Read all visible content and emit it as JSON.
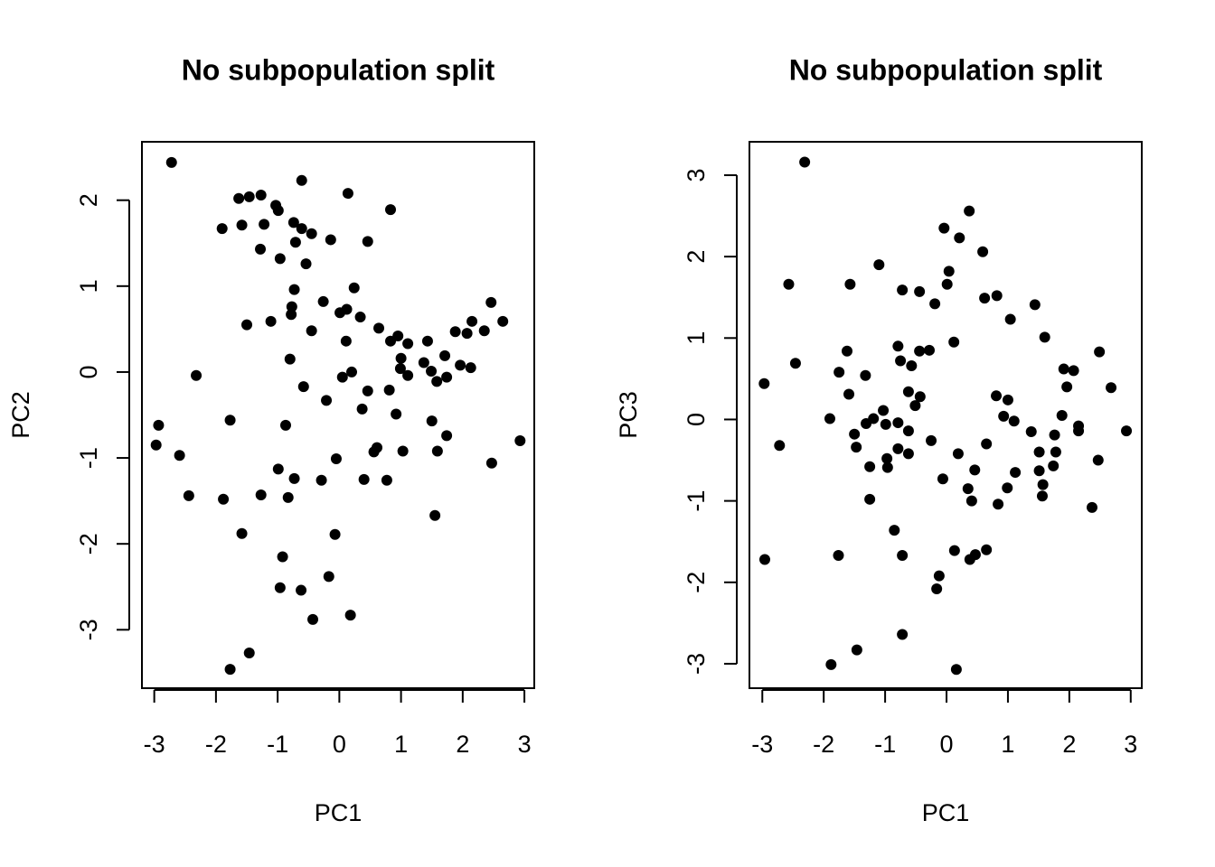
{
  "chart_data": [
    {
      "type": "scatter",
      "title": "No subpopulation split",
      "x_label": "PC1",
      "y_label": "PC2",
      "color": "#000000",
      "xlim": [
        -3.2,
        3.16
      ],
      "ylim": [
        -3.68,
        2.68
      ],
      "xticks": [
        -3,
        -2,
        -1,
        0,
        1,
        2,
        3
      ],
      "yticks": [
        -3,
        -2,
        -1,
        0,
        1,
        2
      ],
      "x": [
        -2.72,
        -1.03,
        -1.63,
        -1.46,
        -1.27,
        -0.61,
        0.14,
        0.83,
        -1.9,
        -1.58,
        -1.22,
        -0.99,
        -0.74,
        -0.61,
        -0.45,
        -0.14,
        0.46,
        -1.28,
        -0.71,
        -0.96,
        -0.54,
        -0.73,
        -1.5,
        -1.11,
        -0.77,
        -0.78,
        -0.26,
        0.12,
        0.01,
        0.34,
        0.24,
        -0.45,
        0.64,
        0.83,
        0.11,
        0.95,
        1.11,
        1.43,
        2.46,
        2.65,
        2.15,
        2.35,
        2.07,
        1.88,
        1.0,
        0.99,
        1.37,
        1.49,
        1.58,
        1.74,
        1.71,
        1.96,
        2.13,
        1.11,
        0.2,
        0.05,
        -0.8,
        -0.58,
        -2.32,
        -0.21,
        0.46,
        0.81,
        0.92,
        0.37,
        -1.77,
        -0.87,
        -2.93,
        -2.97,
        -2.59,
        -0.05,
        -0.99,
        -0.73,
        -0.29,
        -1.27,
        -0.83,
        0.4,
        0.77,
        0.61,
        0.56,
        1.03,
        1.5,
        1.59,
        1.74,
        2.47,
        2.93,
        -2.44,
        -1.88,
        1.55,
        -1.58,
        -0.07,
        -0.92,
        -0.17,
        -0.96,
        -0.62,
        -0.43,
        0.18,
        -1.46,
        -1.77
      ],
      "values": [
        2.44,
        1.94,
        2.02,
        2.04,
        2.06,
        2.23,
        2.08,
        1.89,
        1.67,
        1.71,
        1.72,
        1.88,
        1.74,
        1.67,
        1.61,
        1.54,
        1.52,
        1.43,
        1.51,
        1.32,
        1.26,
        0.96,
        0.55,
        0.59,
        0.76,
        0.67,
        0.82,
        0.73,
        0.69,
        0.64,
        0.98,
        0.48,
        0.51,
        0.36,
        0.36,
        0.42,
        0.33,
        0.36,
        0.81,
        0.59,
        0.59,
        0.48,
        0.45,
        0.47,
        0.16,
        0.04,
        0.11,
        0.01,
        -0.11,
        -0.06,
        0.19,
        0.08,
        0.05,
        -0.04,
        0.0,
        -0.06,
        0.15,
        -0.17,
        -0.04,
        -0.33,
        -0.22,
        -0.21,
        -0.49,
        -0.43,
        -0.56,
        -0.62,
        -0.62,
        -0.85,
        -0.97,
        -1.01,
        -1.13,
        -1.24,
        -1.26,
        -1.43,
        -1.46,
        -1.25,
        -1.26,
        -0.88,
        -0.93,
        -0.92,
        -0.57,
        -0.92,
        -0.74,
        -1.06,
        -0.8,
        -1.44,
        -1.48,
        -1.67,
        -1.88,
        -1.89,
        -2.15,
        -2.38,
        -2.51,
        -2.54,
        -2.88,
        -2.83,
        -3.27,
        -3.46
      ]
    },
    {
      "type": "scatter",
      "title": "No subpopulation split",
      "x_label": "PC1",
      "y_label": "PC3",
      "color": "#000000",
      "xlim": [
        -3.21,
        3.18
      ],
      "ylim": [
        -3.3,
        3.41
      ],
      "xticks": [
        -3,
        -2,
        -1,
        0,
        1,
        2,
        3
      ],
      "yticks": [
        -3,
        -2,
        -1,
        0,
        1,
        2,
        3
      ],
      "x": [
        -2.31,
        0.37,
        -0.04,
        0.21,
        0.59,
        -1.1,
        0.04,
        -2.57,
        -1.57,
        0.01,
        -0.72,
        -0.44,
        0.62,
        0.82,
        -0.19,
        1.44,
        1.04,
        1.6,
        0.12,
        -0.79,
        -1.62,
        -0.44,
        -0.28,
        2.49,
        -2.46,
        -0.75,
        -0.57,
        -1.75,
        -1.32,
        1.91,
        2.07,
        1.96,
        2.68,
        -0.62,
        -0.43,
        -1.59,
        -0.51,
        0.81,
        1.0,
        -2.97,
        -1.03,
        0.93,
        1.1,
        -1.9,
        -1.19,
        -1.31,
        -0.99,
        -0.79,
        1.88,
        2.15,
        2.15,
        2.93,
        1.38,
        1.76,
        -1.5,
        -0.62,
        -2.72,
        -0.25,
        0.65,
        -1.47,
        -0.79,
        -0.62,
        0.19,
        1.51,
        1.78,
        -0.97,
        2.47,
        -1.25,
        -0.96,
        1.74,
        0.46,
        1.51,
        1.12,
        -0.06,
        0.35,
        0.99,
        1.57,
        1.56,
        -1.25,
        0.41,
        0.84,
        2.37,
        -0.85,
        -2.96,
        -1.76,
        -0.72,
        0.13,
        0.47,
        0.65,
        0.38,
        -0.12,
        -0.16,
        -0.72,
        -1.46,
        -1.88,
        0.16
      ],
      "values": [
        3.16,
        2.56,
        2.35,
        2.23,
        2.06,
        1.9,
        1.82,
        1.66,
        1.66,
        1.66,
        1.59,
        1.57,
        1.49,
        1.52,
        1.42,
        1.41,
        1.23,
        1.01,
        0.95,
        0.9,
        0.84,
        0.84,
        0.85,
        0.83,
        0.69,
        0.72,
        0.66,
        0.58,
        0.54,
        0.62,
        0.6,
        0.4,
        0.39,
        0.34,
        0.28,
        0.31,
        0.17,
        0.29,
        0.24,
        0.44,
        0.11,
        0.04,
        -0.02,
        0.01,
        0.01,
        -0.05,
        -0.06,
        -0.04,
        0.05,
        -0.08,
        -0.14,
        -0.14,
        -0.15,
        -0.19,
        -0.18,
        -0.14,
        -0.32,
        -0.26,
        -0.3,
        -0.34,
        -0.36,
        -0.42,
        -0.42,
        -0.4,
        -0.4,
        -0.48,
        -0.5,
        -0.58,
        -0.59,
        -0.57,
        -0.62,
        -0.63,
        -0.65,
        -0.73,
        -0.85,
        -0.84,
        -0.8,
        -0.94,
        -0.98,
        -1.0,
        -1.04,
        -1.08,
        -1.36,
        -1.72,
        -1.67,
        -1.67,
        -1.61,
        -1.66,
        -1.6,
        -1.72,
        -1.92,
        -2.08,
        -2.64,
        -2.83,
        -3.01,
        -3.07
      ]
    }
  ]
}
